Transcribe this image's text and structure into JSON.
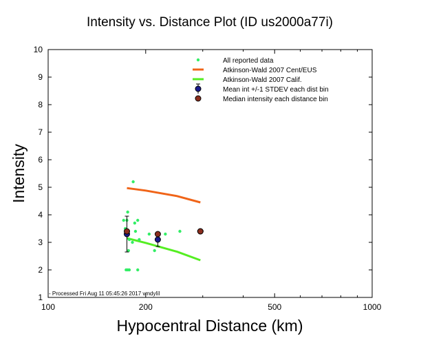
{
  "chart_data": {
    "type": "scatter",
    "title": "Intensity vs. Distance Plot (ID us2000a77i)",
    "xlabel": "Hypocentral Distance (km)",
    "ylabel": "Intensity",
    "x_scale": "log",
    "xlim": [
      100,
      1000
    ],
    "ylim": [
      1,
      10
    ],
    "x_ticks": [
      100,
      200,
      500,
      1000
    ],
    "y_ticks": [
      1,
      2,
      3,
      4,
      5,
      6,
      7,
      8,
      9,
      10
    ],
    "footer": "- Processed Fri Aug 11 05:45:26 2017 vmdylïl",
    "legend_position": "top-right",
    "colors": {
      "reported": "#33ee66",
      "cent_eus": "#f06418",
      "calif": "#55ee22",
      "mean": "#1a1a8c",
      "median": "#8b2e1e"
    },
    "legend": [
      {
        "label": "All reported data",
        "marker": "dot",
        "color": "#33ee66"
      },
      {
        "label": "Atkinson-Wald 2007 Cent/EUS",
        "marker": "line",
        "color": "#f06418"
      },
      {
        "label": "Atkinson-Wald 2007 Calif.",
        "marker": "line",
        "color": "#55ee22"
      },
      {
        "label": "Mean int +/-1 STDEV each dist bin",
        "marker": "circle-errorbar",
        "color": "#1a1a8c"
      },
      {
        "label": "Median intensity each distance bin",
        "marker": "circle",
        "color": "#8b2e1e"
      }
    ],
    "series": [
      {
        "name": "All reported data",
        "type": "scatter",
        "points": [
          [
            171,
            3.8
          ],
          [
            173,
            3.5
          ],
          [
            175,
            3.8
          ],
          [
            176,
            4.1
          ],
          [
            177,
            3.4
          ],
          [
            178,
            3.1
          ],
          [
            174,
            2.0
          ],
          [
            176,
            2.0
          ],
          [
            178,
            2.0
          ],
          [
            177,
            2.7
          ],
          [
            182,
            3.0
          ],
          [
            183,
            5.2
          ],
          [
            185,
            3.7
          ],
          [
            186,
            3.4
          ],
          [
            189,
            3.8
          ],
          [
            191,
            3.1
          ],
          [
            189,
            2.0
          ],
          [
            205,
            3.3
          ],
          [
            213,
            2.7
          ],
          [
            230,
            3.3
          ],
          [
            255,
            3.4
          ],
          [
            295,
            3.4
          ]
        ]
      },
      {
        "name": "Atkinson-Wald 2007 Cent/EUS",
        "type": "line",
        "points": [
          [
            175,
            4.97
          ],
          [
            200,
            4.88
          ],
          [
            250,
            4.68
          ],
          [
            295,
            4.45
          ]
        ]
      },
      {
        "name": "Atkinson-Wald 2007 Calif.",
        "type": "line",
        "points": [
          [
            175,
            3.15
          ],
          [
            200,
            2.98
          ],
          [
            250,
            2.66
          ],
          [
            295,
            2.35
          ]
        ]
      },
      {
        "name": "Mean int +/-1 STDEV each dist bin",
        "type": "errorbar",
        "points": [
          {
            "x": 175,
            "y": 3.3,
            "lo": 2.65,
            "hi": 3.95
          },
          {
            "x": 218,
            "y": 3.1,
            "lo": 2.85,
            "hi": 3.35
          },
          {
            "x": 295,
            "y": 3.4,
            "lo": 3.4,
            "hi": 3.4
          }
        ]
      },
      {
        "name": "Median intensity each distance bin",
        "type": "scatter",
        "points": [
          [
            175,
            3.4
          ],
          [
            218,
            3.3
          ],
          [
            295,
            3.4
          ]
        ]
      }
    ]
  }
}
